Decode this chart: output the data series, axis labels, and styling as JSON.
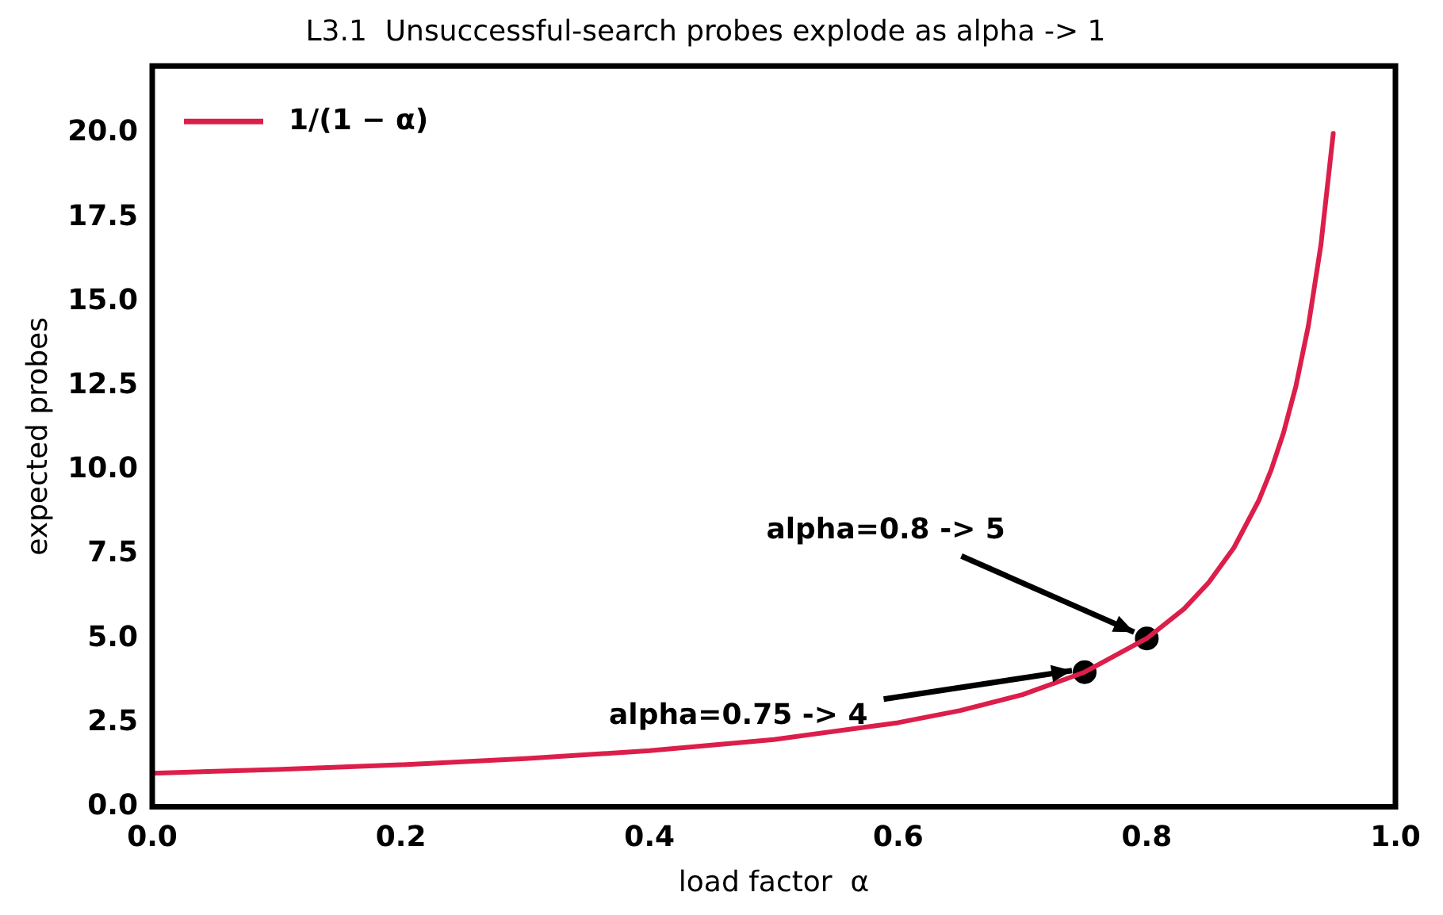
{
  "chart_data": {
    "type": "line",
    "title": "L3.1  Unsuccessful-search probes explode as alpha -> 1",
    "xlabel": "load factor  α",
    "ylabel": "expected probes",
    "series": [
      {
        "name": "1/(1 − α)",
        "color": "#dc1e4a",
        "x": [
          0,
          0.1,
          0.2,
          0.3,
          0.4,
          0.5,
          0.6,
          0.65,
          0.7,
          0.75,
          0.8,
          0.83,
          0.85,
          0.87,
          0.89,
          0.9,
          0.91,
          0.92,
          0.93,
          0.94,
          0.95
        ],
        "values": [
          1,
          1.11,
          1.25,
          1.43,
          1.67,
          2,
          2.5,
          2.86,
          3.33,
          4,
          5,
          5.88,
          6.67,
          7.69,
          9.09,
          10,
          11.11,
          12.5,
          14.29,
          16.67,
          20
        ]
      },
      {
        "type": "scatter",
        "color": "#000000",
        "x": [
          0.75,
          0.8
        ],
        "values": [
          4,
          5
        ]
      }
    ],
    "annotations": [
      {
        "text": "alpha=0.8 -> 5",
        "x": 0.8,
        "y": 5
      },
      {
        "text": "alpha=0.75 -> 4",
        "x": 0.75,
        "y": 4
      }
    ],
    "xlim": [
      0,
      1
    ],
    "ylim": [
      0,
      22
    ],
    "xticks": [
      {
        "value": 0,
        "label": "0.0"
      },
      {
        "value": 0.2,
        "label": "0.2"
      },
      {
        "value": 0.4,
        "label": "0.4"
      },
      {
        "value": 0.6,
        "label": "0.6"
      },
      {
        "value": 0.8,
        "label": "0.8"
      },
      {
        "value": 1,
        "label": "1.0"
      }
    ],
    "yticks": [
      {
        "value": 0,
        "label": "0.0"
      },
      {
        "value": 2.5,
        "label": "2.5"
      },
      {
        "value": 5,
        "label": "5.0"
      },
      {
        "value": 7.5,
        "label": "7.5"
      },
      {
        "value": 10,
        "label": "10.0"
      },
      {
        "value": 12.5,
        "label": "12.5"
      },
      {
        "value": 15,
        "label": "15.0"
      },
      {
        "value": 17.5,
        "label": "17.5"
      },
      {
        "value": 20,
        "label": "20.0"
      }
    ],
    "grid": false,
    "legend": "top left"
  }
}
